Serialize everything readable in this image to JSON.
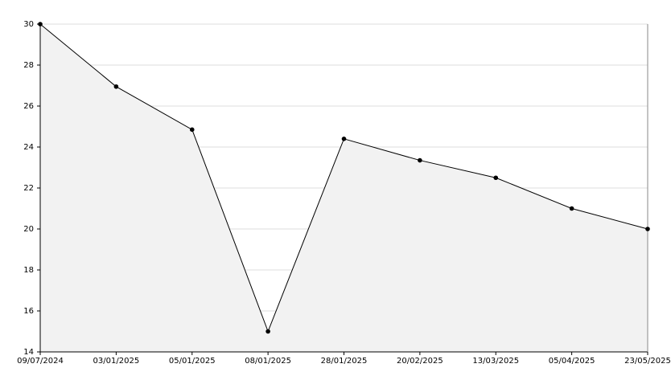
{
  "chart_data": {
    "type": "area",
    "categories": [
      "09/07/2024",
      "03/01/2025",
      "05/01/2025",
      "08/01/2025",
      "28/01/2025",
      "20/02/2025",
      "13/03/2025",
      "05/04/2025",
      "23/05/2025"
    ],
    "values": [
      30,
      26.95,
      24.85,
      15,
      24.4,
      23.35,
      22.5,
      21,
      20
    ],
    "color": "#000000",
    "fill": "#f2f2f2",
    "ylim": [
      14,
      30
    ],
    "yticks": [
      14,
      16,
      18,
      20,
      22,
      24,
      26,
      28,
      30
    ],
    "grid": true
  }
}
